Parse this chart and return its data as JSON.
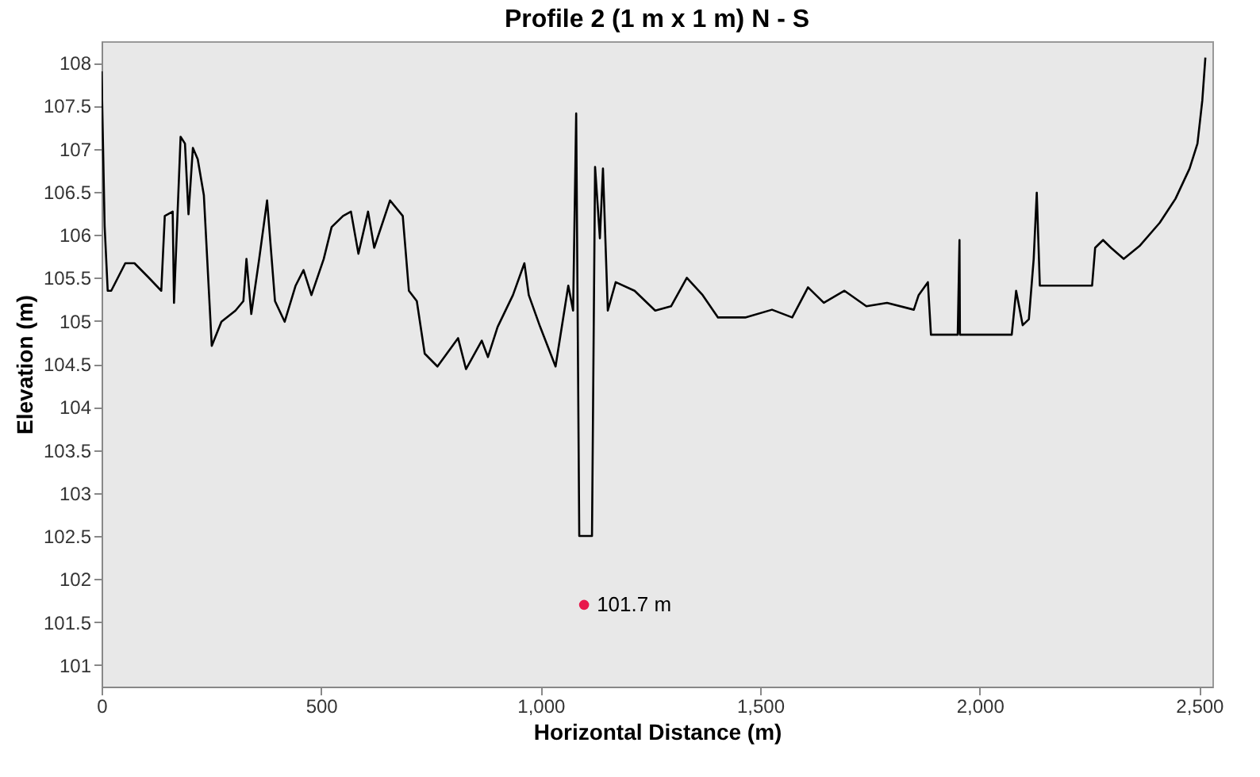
{
  "chart_data": {
    "type": "line",
    "title": "Profile 2 (1 m x 1 m) N - S",
    "xlabel": "Horizontal Distance (m)",
    "ylabel": "Elevation (m)",
    "xlim": [
      0,
      2530
    ],
    "ylim": [
      100.75,
      108.25
    ],
    "xticks": [
      0,
      500,
      {
        "value": 1000,
        "label": "1,000"
      },
      {
        "value": 1500,
        "label": "1,500"
      },
      {
        "value": 2000,
        "label": "2,000"
      },
      {
        "value": 2500,
        "label": "2,500"
      }
    ],
    "yticks": [
      101,
      101.5,
      102,
      102.5,
      103,
      103.5,
      104,
      104.5,
      105,
      105.5,
      106,
      106.5,
      107,
      107.5,
      108
    ],
    "grid": false,
    "series": [
      {
        "type": "line",
        "color": "#000000",
        "x": [
          0,
          7,
          14,
          22,
          54,
          75,
          108,
          136,
          144,
          162,
          165,
          180,
          190,
          198,
          208,
          219,
          233,
          251,
          273,
          305,
          323,
          330,
          341,
          359,
          377,
          395,
          417,
          442,
          460,
          478,
          506,
          524,
          550,
          568,
          585,
          607,
          621,
          657,
          686,
          700,
          718,
          736,
          765,
          812,
          830,
          866,
          880,
          902,
          937,
          963,
          973,
          999,
          1034,
          1063,
          1074,
          1081,
          1088,
          1117,
          1124,
          1135,
          1142,
          1153,
          1171,
          1214,
          1261,
          1297,
          1333,
          1369,
          1404,
          1466,
          1527,
          1573,
          1609,
          1645,
          1692,
          1742,
          1789,
          1850,
          1861,
          1882,
          1889,
          1950,
          1954,
          1955,
          2073,
          2083,
          2098,
          2112,
          2123,
          2130,
          2137,
          2256,
          2263,
          2281,
          2299,
          2328,
          2364,
          2410,
          2446,
          2478,
          2496,
          2507,
          2514
        ],
        "values": [
          107.9,
          106.1,
          105.35,
          105.35,
          105.67,
          105.67,
          105.5,
          105.35,
          106.22,
          106.27,
          105.21,
          107.14,
          107.06,
          106.24,
          107.01,
          106.88,
          106.46,
          104.71,
          104.99,
          105.12,
          105.23,
          105.72,
          105.08,
          105.72,
          106.4,
          105.23,
          104.99,
          105.41,
          105.59,
          105.3,
          105.72,
          106.09,
          106.22,
          106.27,
          105.78,
          106.27,
          105.85,
          106.4,
          106.22,
          105.35,
          105.23,
          104.62,
          104.47,
          104.8,
          104.44,
          104.77,
          104.58,
          104.93,
          105.3,
          105.67,
          105.3,
          104.93,
          104.47,
          105.41,
          105.12,
          107.41,
          102.5,
          102.5,
          106.79,
          105.96,
          106.77,
          105.12,
          105.45,
          105.35,
          105.12,
          105.17,
          105.5,
          105.3,
          105.04,
          105.04,
          105.13,
          105.04,
          105.39,
          105.21,
          105.35,
          105.17,
          105.21,
          105.13,
          105.3,
          105.45,
          104.84,
          104.84,
          105.94,
          104.84,
          104.84,
          105.35,
          104.95,
          105.02,
          105.72,
          106.49,
          105.41,
          105.41,
          105.85,
          105.94,
          105.85,
          105.72,
          105.87,
          106.14,
          106.42,
          106.77,
          107.06,
          107.56,
          108.06
        ]
      },
      {
        "type": "scatter",
        "color": "#e8174b",
        "x": [
          1099
        ],
        "values": [
          101.7
        ],
        "marker": "circle"
      }
    ],
    "annotations": [
      {
        "text": "101.7 m",
        "x": 1099,
        "y": 101.7
      }
    ]
  }
}
